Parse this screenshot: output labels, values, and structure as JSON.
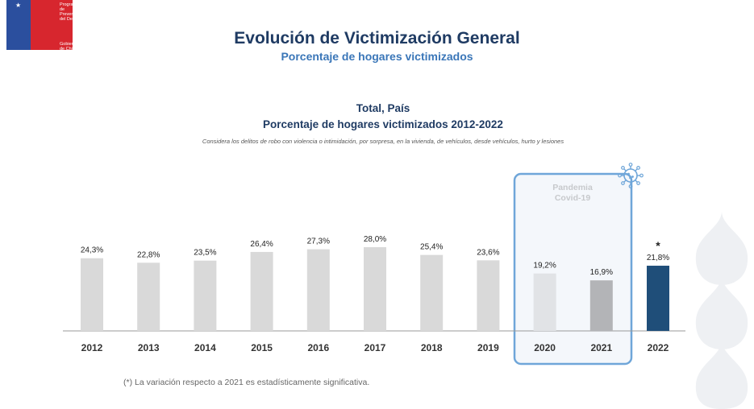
{
  "logo": {
    "top_text": "Programa de Prevención del Delito",
    "bottom_text": "Gobierno de Chile"
  },
  "header": {
    "title": "Evolución de Victimización General",
    "subtitle": "Porcentaje de hogares victimizados"
  },
  "chart": {
    "title_line1": "Total, País",
    "title_line2": "Porcentaje de hogares victimizados 2012-2022",
    "note": "Considera los delitos de robo con violencia o intimidación, por sorpresa, en la vivienda, de vehículos, desde vehículos, hurto y lesiones",
    "pandemic_label_1": "Pandemia",
    "pandemic_label_2": "Covid-19",
    "significance_marker": "*",
    "footnote": "(*) La variación respecto a 2021 es estadísticamente significativa."
  },
  "colors": {
    "bar_default": "#d9d9d9",
    "bar_2020": "#e1e3e6",
    "bar_2021": "#b3b4b7",
    "bar_2022": "#1f4e79",
    "pandemic_box": "#6fa6d9",
    "pandemic_fill": "#f4f7fb",
    "title": "#1f3b63",
    "subtitle": "#3a76b8"
  },
  "chart_data": {
    "type": "bar",
    "categories": [
      "2012",
      "2013",
      "2014",
      "2015",
      "2016",
      "2017",
      "2018",
      "2019",
      "2020",
      "2021",
      "2022"
    ],
    "values": [
      24.3,
      22.8,
      23.5,
      26.4,
      27.3,
      28.0,
      25.4,
      23.6,
      19.2,
      16.9,
      21.8
    ],
    "labels": [
      "24,3%",
      "22,8%",
      "23,5%",
      "26,4%",
      "27,3%",
      "28,0%",
      "25,4%",
      "23,6%",
      "19,2%",
      "16,9%",
      "21,8%"
    ],
    "ylim": [
      0,
      28
    ],
    "highlight_range": [
      "2020",
      "2021"
    ],
    "significant": [
      "2022"
    ]
  }
}
